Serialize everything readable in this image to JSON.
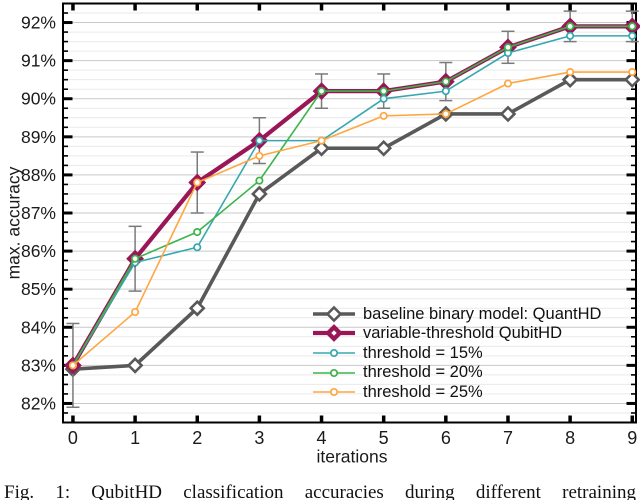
{
  "figure": {
    "caption": "Fig. 1: QubitHD classification accuracies during different retraining"
  },
  "chart_data": {
    "type": "line",
    "title": "",
    "xlabel": "iterations",
    "ylabel": "max. accuracy",
    "x": [
      0,
      1,
      2,
      3,
      4,
      5,
      6,
      7,
      8,
      9
    ],
    "xlim": [
      -0.16,
      9.06
    ],
    "ylim": [
      81.5,
      92.5
    ],
    "y_major_values": [
      82,
      83,
      84,
      85,
      86,
      87,
      88,
      89,
      90,
      91,
      92
    ],
    "y_major_ticks": [
      "82%",
      "83%",
      "84%",
      "85%",
      "86%",
      "87%",
      "88%",
      "89%",
      "90%",
      "91%",
      "92%"
    ],
    "y_minor_step": 0.25,
    "grid": true,
    "legend_position": "lower right",
    "series": [
      {
        "name": "baseline binary model: QuantHD",
        "color": "#595959",
        "line_width": 3.6,
        "marker": "open-diamond",
        "values": [
          82.9,
          83.0,
          84.5,
          87.5,
          88.7,
          88.7,
          89.6,
          89.6,
          90.5,
          90.5
        ]
      },
      {
        "name": "variable-threshold QubitHD",
        "color": "#9a1757",
        "line_width": 4.2,
        "marker": "thick-diamond",
        "values": [
          83.0,
          85.8,
          87.8,
          88.9,
          90.2,
          90.2,
          90.45,
          91.35,
          91.9,
          91.9
        ],
        "error": [
          1.1,
          0.85,
          0.8,
          0.6,
          0.45,
          0.45,
          0.5,
          0.42,
          0.4,
          0.4
        ],
        "error_color": "#7a7a7a"
      },
      {
        "name": "threshold = 15%",
        "color": "#35a8af",
        "line_width": 1.6,
        "marker": "open-circle",
        "values": [
          83.0,
          85.7,
          86.1,
          88.9,
          88.9,
          90.0,
          90.2,
          91.2,
          91.65,
          91.65
        ]
      },
      {
        "name": "threshold = 20%",
        "color": "#3cb44b",
        "line_width": 1.6,
        "marker": "open-circle",
        "values": [
          83.0,
          85.8,
          86.5,
          87.85,
          90.2,
          90.2,
          90.45,
          91.35,
          91.9,
          91.9
        ]
      },
      {
        "name": "threshold = 25%",
        "color": "#ffa640",
        "line_width": 1.6,
        "marker": "open-circle",
        "values": [
          83.0,
          84.4,
          87.8,
          88.5,
          88.9,
          89.55,
          89.6,
          90.4,
          90.7,
          90.7
        ]
      }
    ]
  }
}
